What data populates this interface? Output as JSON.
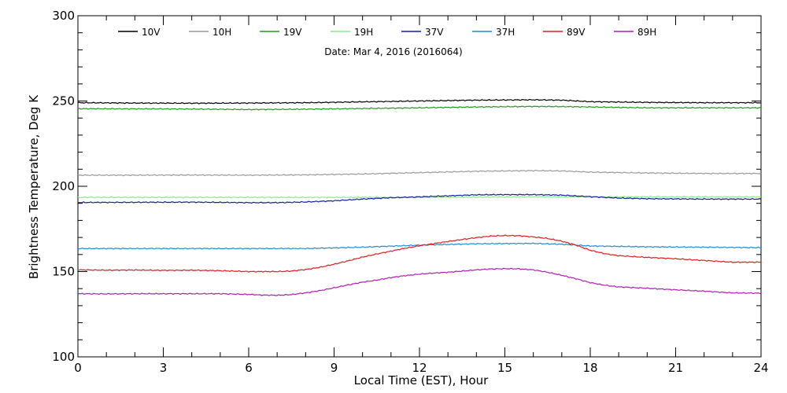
{
  "chart_data": {
    "type": "line",
    "title": "",
    "annotation": "Date: Mar  4, 2016 (2016064)",
    "xlabel": "Local Time (EST), Hour",
    "ylabel": "Brightness Temperature, Deg K",
    "xlim": [
      0,
      24
    ],
    "ylim": [
      100,
      300
    ],
    "xticks": [
      0,
      3,
      6,
      9,
      12,
      15,
      18,
      21,
      24
    ],
    "yticks": [
      100,
      150,
      200,
      250,
      300
    ],
    "x_minor_step": 1,
    "y_minor_step": 10,
    "grid": false,
    "legend_position": "top",
    "series": [
      {
        "name": "10V",
        "color": "#000000",
        "points": [
          [
            0,
            249
          ],
          [
            2,
            248.8
          ],
          [
            4,
            248.7
          ],
          [
            6,
            248.8
          ],
          [
            8,
            249
          ],
          [
            10,
            249.5
          ],
          [
            12,
            250
          ],
          [
            14,
            250.5
          ],
          [
            16,
            250.7
          ],
          [
            17,
            250.5
          ],
          [
            18,
            249.6
          ],
          [
            20,
            249.2
          ],
          [
            22,
            249
          ],
          [
            24,
            249
          ]
        ]
      },
      {
        "name": "10H",
        "color": "#999999",
        "points": [
          [
            0,
            206.5
          ],
          [
            2,
            206.5
          ],
          [
            4,
            206.6
          ],
          [
            6,
            206.5
          ],
          [
            8,
            206.7
          ],
          [
            10,
            207.2
          ],
          [
            12,
            208
          ],
          [
            14,
            208.8
          ],
          [
            16,
            209.2
          ],
          [
            17,
            209
          ],
          [
            18,
            208.3
          ],
          [
            20,
            207.8
          ],
          [
            22,
            207.5
          ],
          [
            24,
            207.5
          ]
        ]
      },
      {
        "name": "19V",
        "color": "#1f9a1f",
        "points": [
          [
            0,
            245.5
          ],
          [
            2,
            245.4
          ],
          [
            4,
            245.3
          ],
          [
            6,
            245
          ],
          [
            8,
            245.2
          ],
          [
            10,
            245.6
          ],
          [
            12,
            246
          ],
          [
            14,
            246.5
          ],
          [
            16,
            246.8
          ],
          [
            17,
            246.7
          ],
          [
            18,
            246.5
          ],
          [
            20,
            246
          ],
          [
            22,
            246
          ],
          [
            24,
            246
          ]
        ]
      },
      {
        "name": "19H",
        "color": "#8ee88e",
        "points": [
          [
            0,
            193.5
          ],
          [
            4,
            193.5
          ],
          [
            8,
            193.5
          ],
          [
            12,
            193.5
          ],
          [
            16,
            193.8
          ],
          [
            20,
            193.8
          ],
          [
            24,
            193.8
          ]
        ]
      },
      {
        "name": "37V",
        "color": "#1a1aa6",
        "points": [
          [
            0,
            190.5
          ],
          [
            2,
            190.6
          ],
          [
            4,
            190.7
          ],
          [
            6,
            190.4
          ],
          [
            7,
            190.4
          ],
          [
            8,
            190.8
          ],
          [
            9,
            191.5
          ],
          [
            10,
            192.5
          ],
          [
            11,
            193.3
          ],
          [
            12,
            193.8
          ],
          [
            13,
            194.4
          ],
          [
            14,
            195
          ],
          [
            15,
            195.1
          ],
          [
            16,
            195.1
          ],
          [
            17,
            194.8
          ],
          [
            18,
            193.9
          ],
          [
            19,
            193.1
          ],
          [
            20,
            192.7
          ],
          [
            22,
            192.5
          ],
          [
            24,
            192.5
          ]
        ]
      },
      {
        "name": "37H",
        "color": "#1c8cd8",
        "points": [
          [
            0,
            163.5
          ],
          [
            2,
            163.5
          ],
          [
            4,
            163.5
          ],
          [
            6,
            163.5
          ],
          [
            8,
            163.5
          ],
          [
            10,
            164.3
          ],
          [
            12,
            165.5
          ],
          [
            14,
            166.3
          ],
          [
            16,
            166.5
          ],
          [
            17,
            166
          ],
          [
            18,
            165
          ],
          [
            20,
            164.5
          ],
          [
            22,
            164.3
          ],
          [
            24,
            164
          ]
        ]
      },
      {
        "name": "89V",
        "color": "#e11b1b",
        "points": [
          [
            0,
            151
          ],
          [
            1,
            150.8
          ],
          [
            2,
            150.9
          ],
          [
            3,
            150.7
          ],
          [
            4,
            150.8
          ],
          [
            5,
            150.5
          ],
          [
            6,
            150
          ],
          [
            7,
            150
          ],
          [
            7.5,
            150.3
          ],
          [
            8,
            151.2
          ],
          [
            8.5,
            152.5
          ],
          [
            9,
            154.3
          ],
          [
            9.5,
            156.3
          ],
          [
            10,
            158.5
          ],
          [
            10.5,
            160.3
          ],
          [
            11,
            162
          ],
          [
            11.5,
            163.7
          ],
          [
            12,
            165.1
          ],
          [
            12.5,
            166.4
          ],
          [
            13,
            167.6
          ],
          [
            13.5,
            168.8
          ],
          [
            14,
            169.9
          ],
          [
            14.5,
            170.8
          ],
          [
            15,
            171.1
          ],
          [
            15.5,
            171
          ],
          [
            16,
            170.3
          ],
          [
            16.5,
            169.4
          ],
          [
            17,
            167.8
          ],
          [
            17.5,
            165.5
          ],
          [
            18,
            162.5
          ],
          [
            18.5,
            160.5
          ],
          [
            19,
            159.3
          ],
          [
            20,
            158.3
          ],
          [
            21,
            157.5
          ],
          [
            22,
            156.5
          ],
          [
            23,
            155.5
          ],
          [
            24,
            155.5
          ]
        ]
      },
      {
        "name": "89H",
        "color": "#b31bb3",
        "points": [
          [
            0,
            137
          ],
          [
            1,
            136.9
          ],
          [
            2,
            137
          ],
          [
            3,
            137
          ],
          [
            4,
            137
          ],
          [
            5,
            137
          ],
          [
            6,
            136.6
          ],
          [
            6.5,
            136.2
          ],
          [
            7,
            136.1
          ],
          [
            7.5,
            136.5
          ],
          [
            8,
            137.5
          ],
          [
            8.5,
            138.8
          ],
          [
            9,
            140.5
          ],
          [
            9.5,
            142.2
          ],
          [
            10,
            143.8
          ],
          [
            10.5,
            145
          ],
          [
            11,
            146.5
          ],
          [
            11.5,
            147.6
          ],
          [
            12,
            148.5
          ],
          [
            12.5,
            149.1
          ],
          [
            13,
            149.6
          ],
          [
            13.5,
            150.3
          ],
          [
            14,
            151
          ],
          [
            14.5,
            151.5
          ],
          [
            15,
            151.7
          ],
          [
            15.5,
            151.6
          ],
          [
            16,
            151
          ],
          [
            16.5,
            149.6
          ],
          [
            17,
            147.8
          ],
          [
            17.5,
            145.8
          ],
          [
            18,
            143.5
          ],
          [
            18.5,
            142
          ],
          [
            19,
            141
          ],
          [
            20,
            140.2
          ],
          [
            21,
            139.3
          ],
          [
            22,
            138.5
          ],
          [
            23,
            137.5
          ],
          [
            24,
            137.3
          ]
        ]
      }
    ]
  }
}
